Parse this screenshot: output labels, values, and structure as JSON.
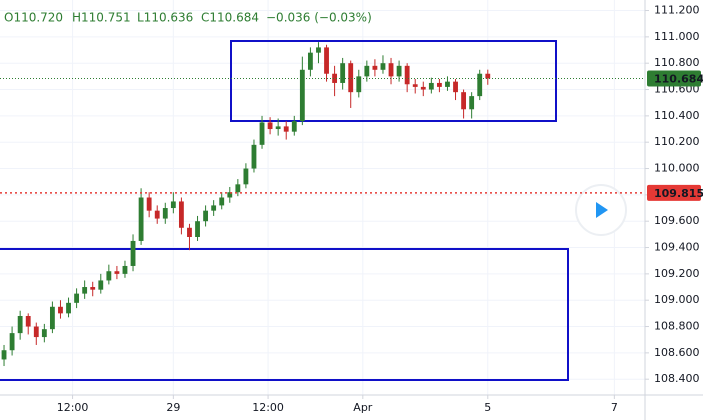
{
  "chart_data": {
    "type": "candlestick",
    "header": [
      "O110.720",
      "H110.751",
      "L110.636",
      "C110.684",
      "−0.036 (−0.03%)"
    ],
    "x": [
      0.5,
      1.5,
      2.5,
      3.5,
      4.5,
      5.5,
      6.5,
      7.5,
      8.5,
      9.5,
      10.5,
      11.5,
      12.5,
      13.5,
      14.5,
      15.5,
      16.5,
      17.5,
      18.5,
      19.5,
      20.5,
      21.5,
      22.5,
      23.5,
      24.5,
      25.5,
      26.5,
      27.5,
      28.5,
      29.5,
      30.5,
      31.5,
      32.5,
      33.5,
      34.5,
      35.5,
      36.5,
      37.5,
      38.5,
      39.5,
      40.5,
      41.5,
      42.5,
      43.5,
      44.5,
      45.5,
      46.5,
      47.5,
      48.5,
      49.5,
      50.5,
      51.5,
      52.5,
      53.5,
      54.5,
      55.5,
      56.5,
      57.5,
      58.5,
      59.5,
      60.5
    ],
    "open": [
      108.55,
      108.62,
      108.75,
      108.88,
      108.8,
      108.72,
      108.78,
      108.95,
      108.9,
      108.98,
      109.05,
      109.1,
      109.08,
      109.15,
      109.22,
      109.2,
      109.26,
      109.45,
      109.78,
      109.68,
      109.62,
      109.7,
      109.75,
      109.55,
      109.48,
      109.6,
      109.68,
      109.72,
      109.78,
      109.82,
      109.88,
      110.0,
      110.18,
      110.35,
      110.3,
      110.32,
      110.28,
      110.36,
      110.75,
      110.88,
      110.92,
      110.72,
      110.65,
      110.8,
      110.58,
      110.7,
      110.78,
      110.75,
      110.8,
      110.7,
      110.78,
      110.64,
      110.62,
      110.6,
      110.65,
      110.62,
      110.66,
      110.58,
      110.45,
      110.55,
      110.72
    ],
    "high": [
      108.66,
      108.8,
      108.92,
      108.9,
      108.83,
      108.82,
      108.99,
      109.0,
      109.02,
      109.09,
      109.15,
      109.14,
      109.2,
      109.27,
      109.26,
      109.3,
      109.5,
      109.85,
      109.82,
      109.72,
      109.74,
      109.82,
      109.78,
      109.58,
      109.64,
      109.72,
      109.76,
      109.82,
      109.86,
      109.92,
      110.04,
      110.22,
      110.4,
      110.39,
      110.38,
      110.36,
      110.4,
      110.85,
      110.92,
      110.96,
      110.94,
      110.78,
      110.84,
      110.82,
      110.75,
      110.82,
      110.83,
      110.86,
      110.84,
      110.82,
      110.8,
      110.68,
      110.66,
      110.69,
      110.68,
      110.7,
      110.68,
      110.6,
      110.58,
      110.75,
      110.751
    ],
    "low": [
      108.5,
      108.58,
      108.7,
      108.74,
      108.66,
      108.68,
      108.75,
      108.86,
      108.87,
      108.94,
      109.01,
      109.03,
      109.05,
      109.12,
      109.16,
      109.17,
      109.22,
      109.42,
      109.63,
      109.58,
      109.58,
      109.66,
      109.5,
      109.38,
      109.45,
      109.56,
      109.64,
      109.69,
      109.74,
      109.79,
      109.85,
      109.97,
      110.15,
      110.26,
      110.25,
      110.22,
      110.25,
      110.33,
      110.7,
      110.8,
      110.66,
      110.55,
      110.6,
      110.46,
      110.54,
      110.66,
      110.7,
      110.72,
      110.64,
      110.66,
      110.58,
      110.57,
      110.55,
      110.57,
      110.58,
      110.59,
      110.52,
      110.38,
      110.38,
      110.52,
      110.636
    ],
    "close": [
      108.62,
      108.75,
      108.88,
      108.8,
      108.72,
      108.78,
      108.95,
      108.9,
      108.98,
      109.05,
      109.1,
      109.08,
      109.15,
      109.22,
      109.2,
      109.26,
      109.45,
      109.78,
      109.68,
      109.62,
      109.7,
      109.75,
      109.55,
      109.48,
      109.6,
      109.68,
      109.72,
      109.78,
      109.82,
      109.88,
      110.0,
      110.18,
      110.35,
      110.3,
      110.32,
      110.28,
      110.36,
      110.75,
      110.88,
      110.92,
      110.72,
      110.65,
      110.8,
      110.58,
      110.7,
      110.78,
      110.75,
      110.8,
      110.7,
      110.78,
      110.64,
      110.62,
      110.6,
      110.65,
      110.62,
      110.66,
      110.58,
      110.45,
      110.55,
      110.72,
      110.684
    ],
    "up_color": "#2e7d32",
    "down_color": "#c62828",
    "xlim": [
      0,
      80
    ],
    "xticks": [
      {
        "value": 9,
        "label": "12:00"
      },
      {
        "value": 21.5,
        "label": "29"
      },
      {
        "value": 33.25,
        "label": "12:00"
      },
      {
        "value": 45,
        "label": "Apr"
      },
      {
        "value": 60.5,
        "label": "5"
      },
      {
        "value": 76.2,
        "label": "7"
      }
    ],
    "ylim": [
      108.28,
      111.28
    ],
    "yticks": [
      {
        "value": 108.4,
        "label": "108.400"
      },
      {
        "value": 108.6,
        "label": "108.600"
      },
      {
        "value": 108.8,
        "label": "108.800"
      },
      {
        "value": 109.0,
        "label": "109.000"
      },
      {
        "value": 109.2,
        "label": "109.200"
      },
      {
        "value": 109.4,
        "label": "109.400"
      },
      {
        "value": 109.6,
        "label": "109.600"
      },
      {
        "value": 109.8,
        "label": "109.800"
      },
      {
        "value": 110.0,
        "label": "110.000"
      },
      {
        "value": 110.2,
        "label": "110.200"
      },
      {
        "value": 110.4,
        "label": "110.400"
      },
      {
        "value": 110.6,
        "label": "110.600"
      },
      {
        "value": 110.8,
        "label": "110.800"
      },
      {
        "value": 111.0,
        "label": "111.000"
      },
      {
        "value": 111.2,
        "label": "111.200"
      }
    ],
    "grid": true,
    "last_price": {
      "value": 110.684,
      "label": "110.684",
      "color": "#2e7d32"
    },
    "marked_price": {
      "value": 109.815,
      "label": "109.815",
      "color": "#e53935"
    }
  }
}
